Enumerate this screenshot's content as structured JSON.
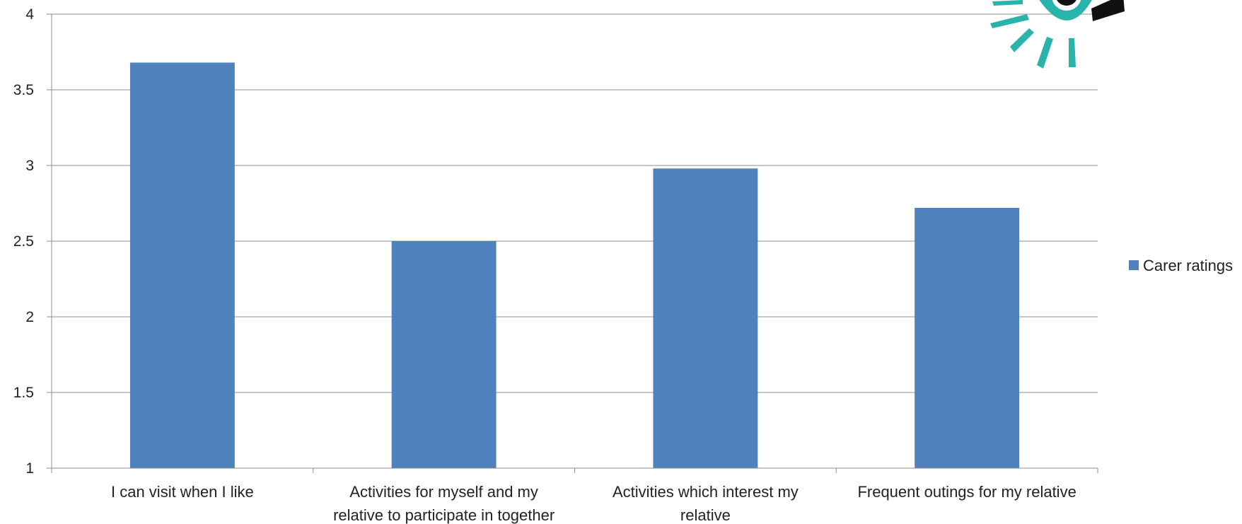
{
  "chart_data": {
    "type": "bar",
    "categories": [
      [
        "I can visit when I like"
      ],
      [
        "Activities for myself and my",
        "relative to participate in together"
      ],
      [
        "Activities which interest my",
        "relative"
      ],
      [
        "Frequent outings for my relative"
      ]
    ],
    "series": [
      {
        "name": "Carer ratings",
        "color": "#4f81bd",
        "values": [
          3.68,
          2.5,
          2.98,
          2.72
        ]
      }
    ],
    "ylim": [
      1,
      4
    ],
    "yticks": [
      1,
      1.5,
      2,
      2.5,
      3,
      3.5,
      4
    ],
    "ytick_labels": [
      "1",
      "1.5",
      "2",
      "2.5",
      "3",
      "3.5",
      "4"
    ],
    "grid": true,
    "legend": "right",
    "logo_icon": "eye-sun-logo-icon"
  }
}
